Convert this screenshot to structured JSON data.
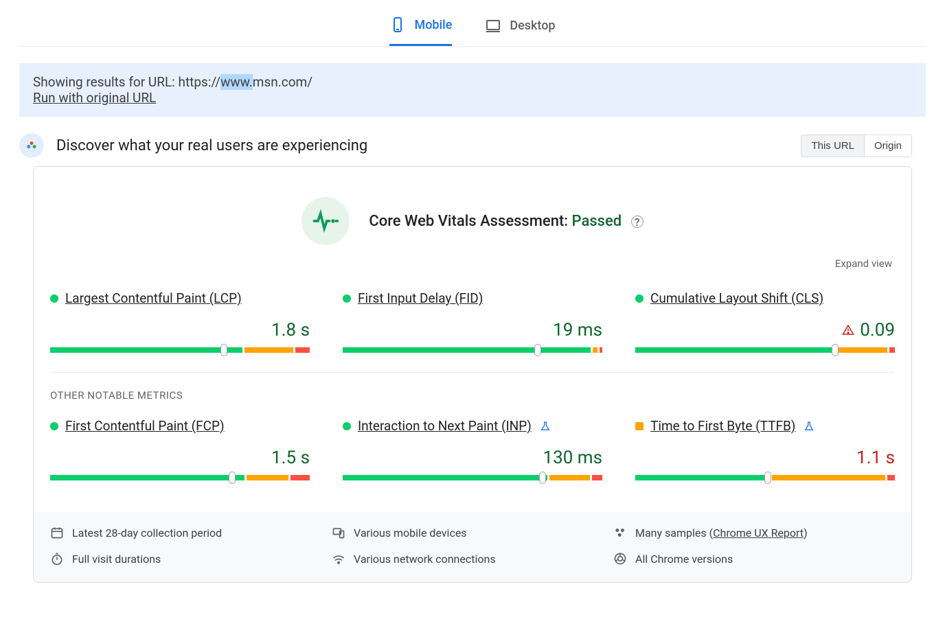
{
  "colors": {
    "primary": "#1a73e8",
    "good": "#0cce6b",
    "good_dark": "#0d652d",
    "warn": "#ffa400",
    "bad": "#ff4e42",
    "text": "#202124",
    "muted": "#5f6368",
    "banner_bg": "#e8f0fe"
  },
  "tabs": {
    "mobile": "Mobile",
    "desktop": "Desktop",
    "active": "mobile"
  },
  "url_banner": {
    "prefix": "Showing results for URL: https://",
    "highlight": "www.",
    "suffix": "msn.com/",
    "run_link": "Run with original URL"
  },
  "header": {
    "title": "Discover what your real users are experiencing",
    "seg_this_url": "This URL",
    "seg_origin": "Origin"
  },
  "assessment": {
    "label": "Core Web Vitals Assessment: ",
    "status": "Passed"
  },
  "expand": "Expand view",
  "core_metrics": [
    {
      "name": "Largest Contentful Paint (LCP)",
      "value": "1.8 s",
      "status_color": "#0cce6b",
      "value_color": "#0d652d",
      "warn_icon": false,
      "flask": false,
      "bar": {
        "good": 67,
        "warn": 17,
        "bad": 5,
        "marker_pct": 67
      }
    },
    {
      "name": "First Input Delay (FID)",
      "value": "19 ms",
      "status_color": "#0cce6b",
      "value_color": "#0d652d",
      "warn_icon": false,
      "flask": false,
      "bar": {
        "good": 96,
        "warn": 2,
        "bad": 1,
        "marker_pct": 75
      }
    },
    {
      "name": "Cumulative Layout Shift (CLS)",
      "value": "0.09",
      "status_color": "#0cce6b",
      "value_color": "#0d652d",
      "warn_icon": true,
      "flask": false,
      "bar": {
        "good": 77,
        "warn": 20,
        "bad": 2,
        "marker_pct": 77
      }
    }
  ],
  "other_header": "OTHER NOTABLE METRICS",
  "other_metrics": [
    {
      "name": "First Contentful Paint (FCP)",
      "value": "1.5 s",
      "status_color": "#0cce6b",
      "value_color": "#0d652d",
      "warn_icon": false,
      "flask": false,
      "bar": {
        "good": 70,
        "warn": 15,
        "bad": 7,
        "marker_pct": 70
      }
    },
    {
      "name": "Interaction to Next Paint (INP)",
      "value": "130 ms",
      "status_color": "#0cce6b",
      "value_color": "#0d652d",
      "warn_icon": false,
      "flask": true,
      "bar": {
        "good": 77,
        "warn": 15,
        "bad": 4,
        "marker_pct": 77
      }
    },
    {
      "name": "Time to First Byte (TTFB)",
      "value": "1.1 s",
      "status_color": "#ffa400",
      "value_color": "#c5221f",
      "warn_icon": false,
      "flask": true,
      "bar": {
        "good": 51,
        "warn": 43,
        "bad": 3,
        "marker_pct": 51
      }
    }
  ],
  "footer": {
    "period": "Latest 28-day collection period",
    "devices": "Various mobile devices",
    "samples_prefix": "Many samples (",
    "samples_link": "Chrome UX Report",
    "samples_suffix": ")",
    "durations": "Full visit durations",
    "connections": "Various network connections",
    "versions": "All Chrome versions"
  }
}
